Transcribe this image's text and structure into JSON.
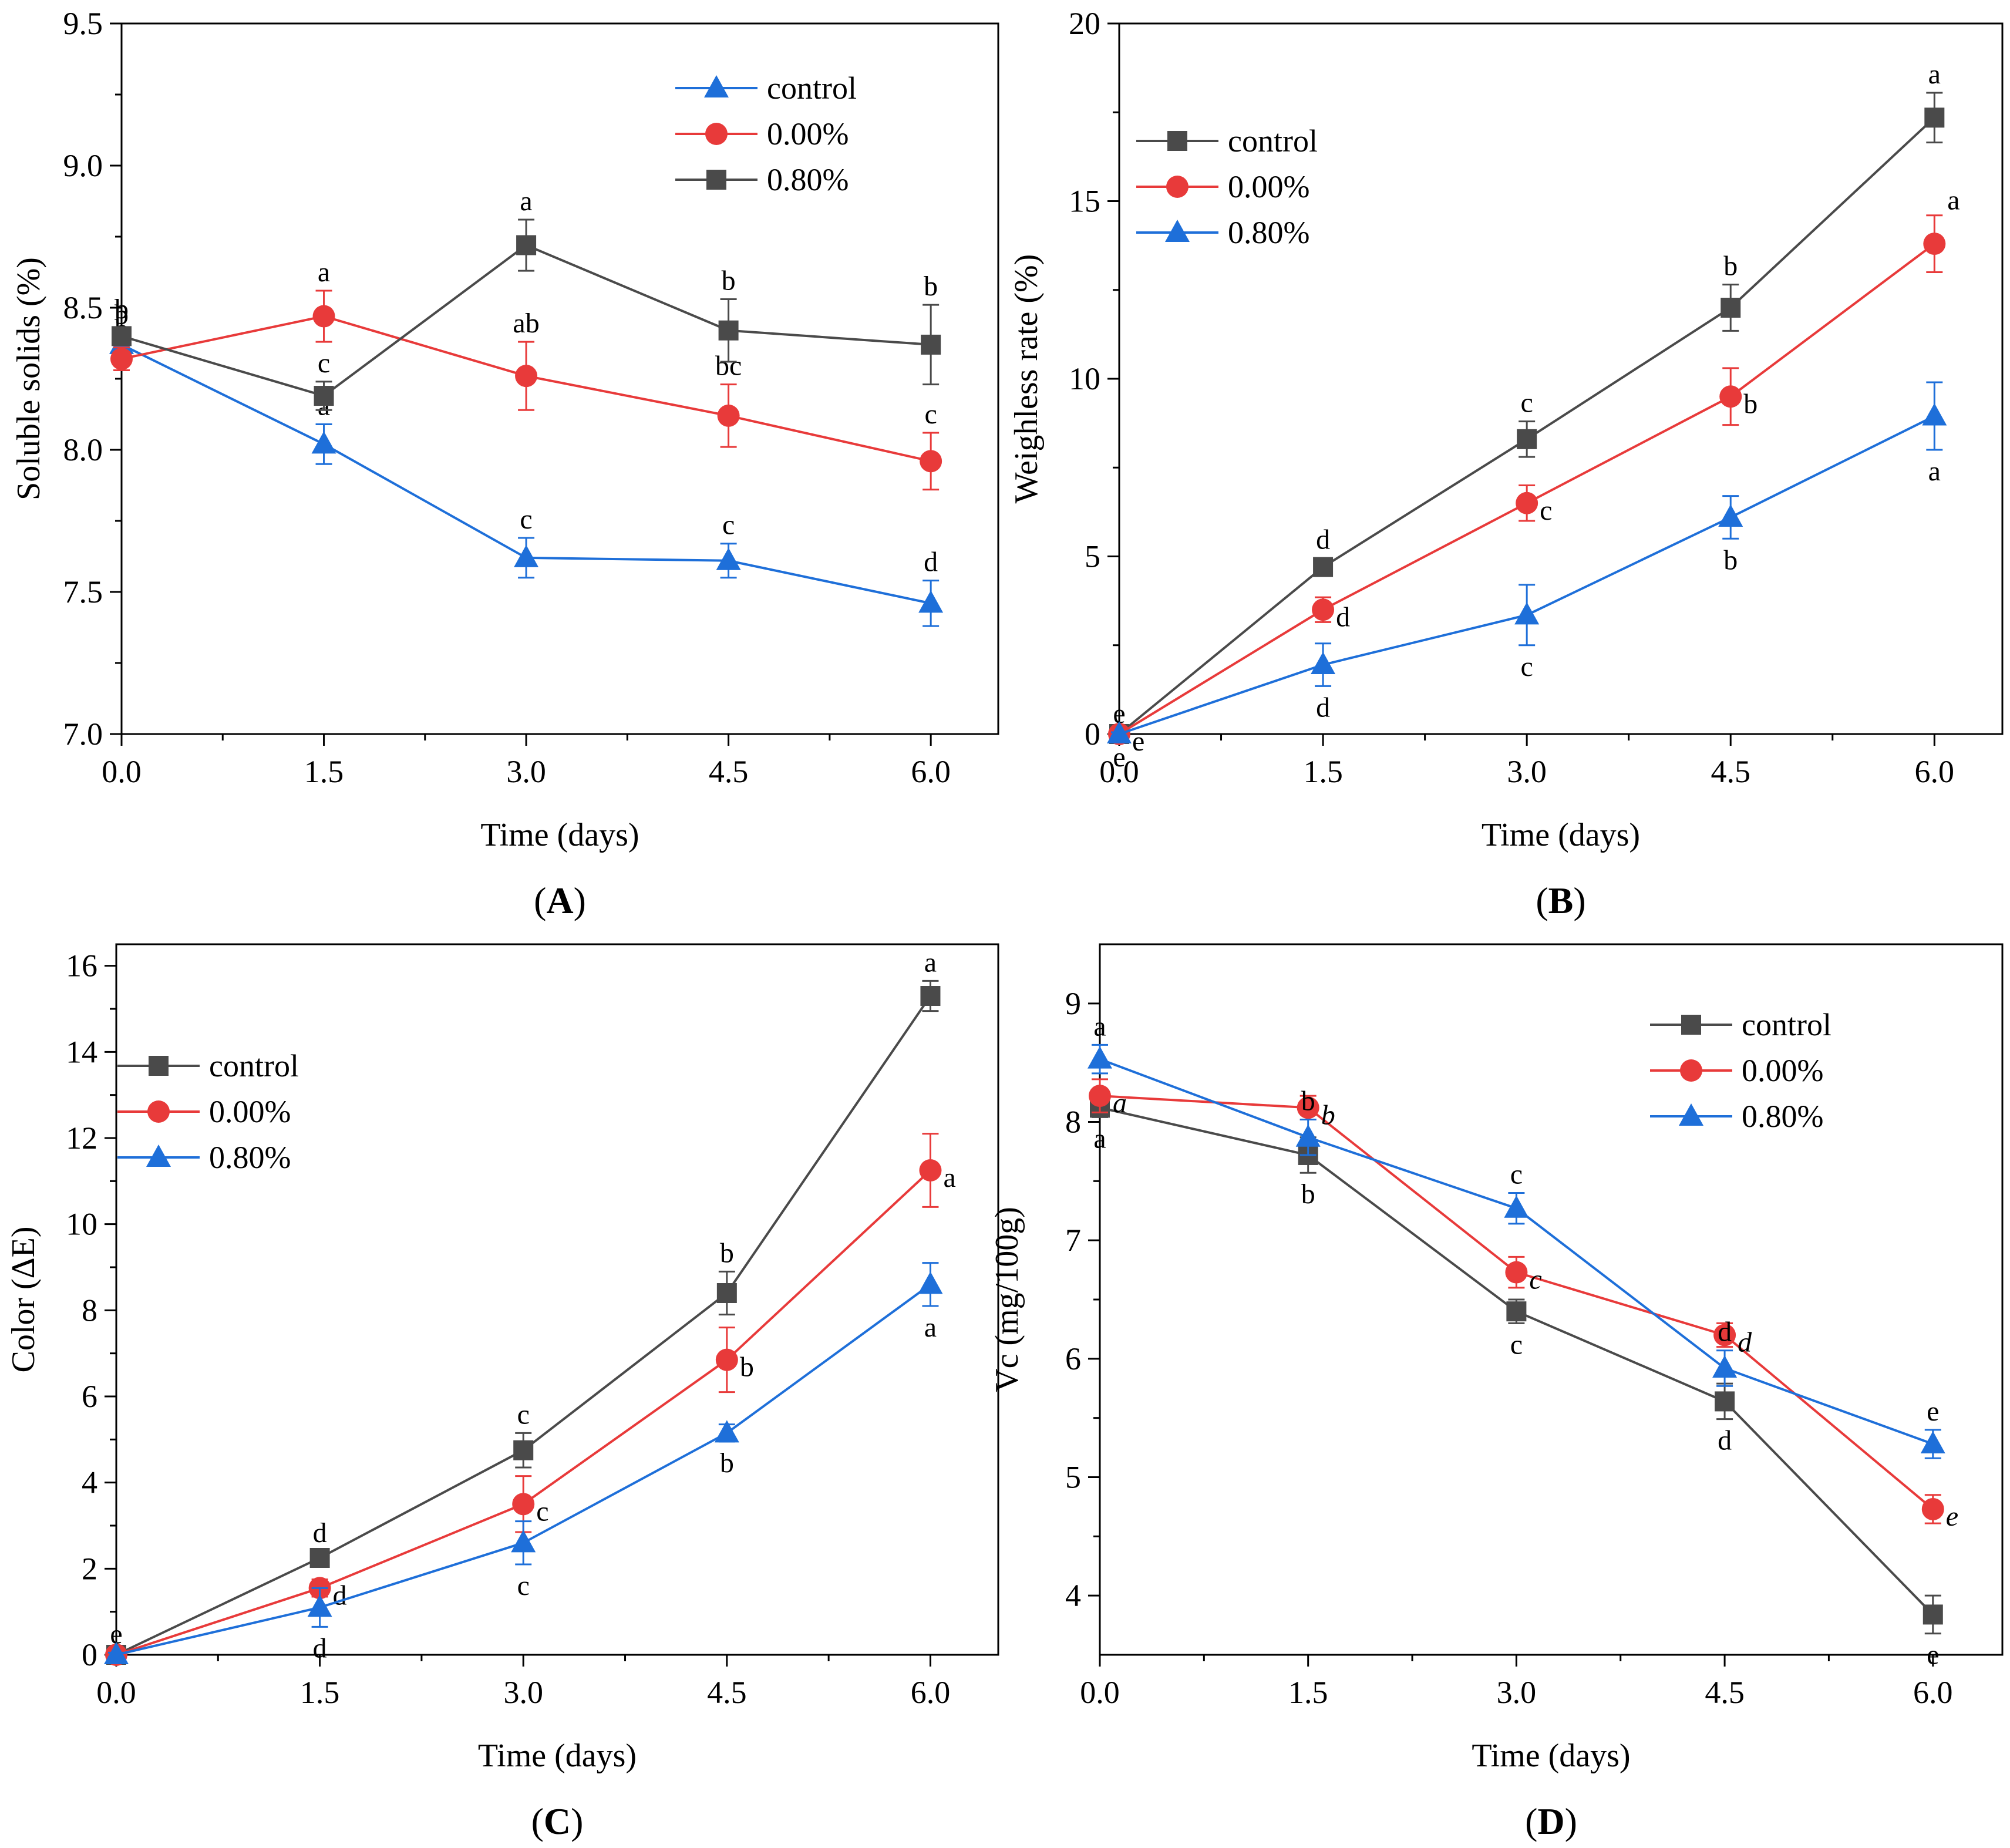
{
  "colors": {
    "control": "#4a4a4a",
    "p000": "#e83a3a",
    "p080": "#1e6fd9"
  },
  "chart_data": [
    {
      "id": "A",
      "type": "line",
      "panel_label": "A",
      "xlabel": "Time (days)",
      "ylabel": "Soluble solids (%)",
      "x": [
        0,
        1.5,
        3.0,
        4.5,
        6.0
      ],
      "xlim": [
        0,
        6.5
      ],
      "ylim": [
        7.0,
        9.5
      ],
      "xticks": [
        "0.0",
        "1.5",
        "3.0",
        "4.5",
        "6.0"
      ],
      "yticks": [
        "7.0",
        "7.5",
        "8.0",
        "8.5",
        "9.0",
        "9.5"
      ],
      "legend_position": "top-right",
      "legend_order": [
        "triangle",
        "circle",
        "square"
      ],
      "series": [
        {
          "name": "control",
          "marker": "triangle",
          "colorKey": "p080",
          "values": [
            8.37,
            8.02,
            7.62,
            7.61,
            7.46
          ],
          "errors": [
            0.04,
            0.07,
            0.07,
            0.06,
            0.08
          ],
          "sig": [
            "b",
            "a",
            "c",
            "c",
            "d"
          ],
          "sigPos": [
            "above",
            "above",
            "above",
            "above",
            "above"
          ]
        },
        {
          "name": "0.00%",
          "marker": "circle",
          "colorKey": "p000",
          "values": [
            8.32,
            8.47,
            8.26,
            8.12,
            7.96
          ],
          "errors": [
            0.04,
            0.09,
            0.12,
            0.11,
            0.1
          ],
          "sig": [
            "b",
            "a",
            "ab",
            "bc",
            "c"
          ],
          "sigPos": [
            "above",
            "above",
            "above",
            "above",
            "above"
          ]
        },
        {
          "name": "0.80%",
          "marker": "square",
          "colorKey": "control",
          "values": [
            8.4,
            8.19,
            8.72,
            8.42,
            8.37
          ],
          "errors": [
            0.03,
            0.05,
            0.09,
            0.11,
            0.14
          ],
          "sig": [
            "b",
            "c",
            "a",
            "b",
            "b"
          ],
          "sigPos": [
            "above",
            "above",
            "above",
            "above",
            "above"
          ]
        }
      ]
    },
    {
      "id": "B",
      "type": "line",
      "panel_label": "B",
      "xlabel": "Time (days)",
      "ylabel": "Weighless rate (%)",
      "x": [
        0,
        1.5,
        3.0,
        4.5,
        6.0
      ],
      "xlim": [
        0,
        6.5
      ],
      "ylim": [
        0,
        20
      ],
      "xticks": [
        "0.0",
        "1.5",
        "3.0",
        "4.5",
        "6.0"
      ],
      "yticks": [
        "0",
        "5",
        "10",
        "15",
        "20"
      ],
      "legend_position": "top-left",
      "legend_order": [
        "square",
        "circle",
        "triangle"
      ],
      "series": [
        {
          "name": "control",
          "marker": "square",
          "colorKey": "control",
          "values": [
            0,
            4.7,
            8.3,
            12.0,
            17.35
          ],
          "errors": [
            0.05,
            0.25,
            0.5,
            0.65,
            0.7
          ],
          "sig": [
            "e",
            "d",
            "c",
            "b",
            "a"
          ],
          "sigPos": [
            "above",
            "above",
            "above",
            "above",
            "above"
          ]
        },
        {
          "name": "0.00%",
          "marker": "circle",
          "colorKey": "p000",
          "values": [
            0,
            3.5,
            6.5,
            9.5,
            13.8
          ],
          "errors": [
            0.05,
            0.35,
            0.5,
            0.8,
            0.8
          ],
          "sig": [
            "e",
            "d",
            "c",
            "b",
            "a"
          ],
          "sigPos": [
            "right",
            "right",
            "right",
            "right",
            "above-right"
          ]
        },
        {
          "name": "0.80%",
          "marker": "triangle",
          "colorKey": "p080",
          "values": [
            0,
            1.95,
            3.35,
            6.1,
            8.95
          ],
          "errors": [
            0.05,
            0.6,
            0.85,
            0.6,
            0.95
          ],
          "sig": [
            "e",
            "d",
            "c",
            "b",
            "a"
          ],
          "sigPos": [
            "below",
            "below",
            "below",
            "below",
            "below"
          ]
        }
      ]
    },
    {
      "id": "C",
      "type": "line",
      "panel_label": "C",
      "xlabel": "Time (days)",
      "ylabel": "Color (ΔE)",
      "x": [
        0,
        1.5,
        3.0,
        4.5,
        6.0
      ],
      "xlim": [
        0,
        6.5
      ],
      "ylim": [
        0,
        16.5
      ],
      "xticks": [
        "0.0",
        "1.5",
        "3.0",
        "4.5",
        "6.0"
      ],
      "yticks": [
        "0",
        "2",
        "4",
        "6",
        "8",
        "10",
        "12",
        "14",
        "16"
      ],
      "legend_position": "top-left",
      "legend_order": [
        "square",
        "circle",
        "triangle"
      ],
      "series": [
        {
          "name": "control",
          "marker": "square",
          "colorKey": "control",
          "values": [
            0,
            2.25,
            4.75,
            8.4,
            15.3
          ],
          "errors": [
            0.05,
            0.15,
            0.4,
            0.5,
            0.35
          ],
          "sig": [
            "e",
            "d",
            "c",
            "b",
            "a"
          ],
          "sigPos": [
            "above",
            "above",
            "above",
            "above",
            "above"
          ]
        },
        {
          "name": "0.00%",
          "marker": "circle",
          "colorKey": "p000",
          "values": [
            0,
            1.55,
            3.5,
            6.85,
            11.25
          ],
          "errors": [
            0.05,
            0.2,
            0.65,
            0.75,
            0.85
          ],
          "sig": [
            "e",
            "d",
            "c",
            "b",
            "a"
          ],
          "sigPos": [
            "none",
            "right",
            "right",
            "right",
            "right"
          ]
        },
        {
          "name": "0.80%",
          "marker": "triangle",
          "colorKey": "p080",
          "values": [
            0,
            1.1,
            2.6,
            5.15,
            8.6
          ],
          "errors": [
            0.05,
            0.45,
            0.5,
            0.2,
            0.5
          ],
          "sig": [
            "e",
            "d",
            "c",
            "b",
            "a"
          ],
          "sigPos": [
            "none",
            "below",
            "below",
            "below",
            "below"
          ]
        }
      ]
    },
    {
      "id": "D",
      "type": "line",
      "panel_label": "D",
      "xlabel": "Time (days)",
      "ylabel": "Vc (mg/100g)",
      "x": [
        0,
        1.5,
        3.0,
        4.5,
        6.0
      ],
      "xlim": [
        0,
        6.5
      ],
      "ylim": [
        3.5,
        9.5
      ],
      "xticks": [
        "0.0",
        "1.5",
        "3.0",
        "4.5",
        "6.0"
      ],
      "yticks": [
        "4",
        "5",
        "6",
        "7",
        "8",
        "9"
      ],
      "legend_position": "top-right",
      "legend_order": [
        "square",
        "circle",
        "triangle"
      ],
      "series": [
        {
          "name": "control",
          "marker": "square",
          "colorKey": "control",
          "values": [
            8.12,
            7.72,
            6.4,
            5.64,
            3.84
          ],
          "errors": [
            0.08,
            0.15,
            0.1,
            0.15,
            0.16
          ],
          "sig": [
            "a",
            "b",
            "c",
            "d",
            "e"
          ],
          "sigPos": [
            "below",
            "below",
            "below",
            "below",
            "below"
          ]
        },
        {
          "name": "0.00%",
          "marker": "circle",
          "colorKey": "p000",
          "values": [
            8.22,
            8.12,
            6.73,
            6.2,
            4.73
          ],
          "errors": [
            0.14,
            0.1,
            0.13,
            0.1,
            0.12
          ],
          "sig": [
            "a",
            "b",
            "c",
            "d",
            "e"
          ],
          "sigPos": [
            "right",
            "right",
            "right",
            "right",
            "right"
          ],
          "sigItalic": true
        },
        {
          "name": "0.80%",
          "marker": "triangle",
          "colorKey": "p080",
          "values": [
            8.53,
            7.87,
            7.27,
            5.92,
            5.28
          ],
          "errors": [
            0.12,
            0.15,
            0.13,
            0.15,
            0.12
          ],
          "sig": [
            "a",
            "b",
            "c",
            "d",
            "e"
          ],
          "sigPos": [
            "above",
            "above",
            "above",
            "above",
            "above"
          ]
        }
      ]
    }
  ]
}
